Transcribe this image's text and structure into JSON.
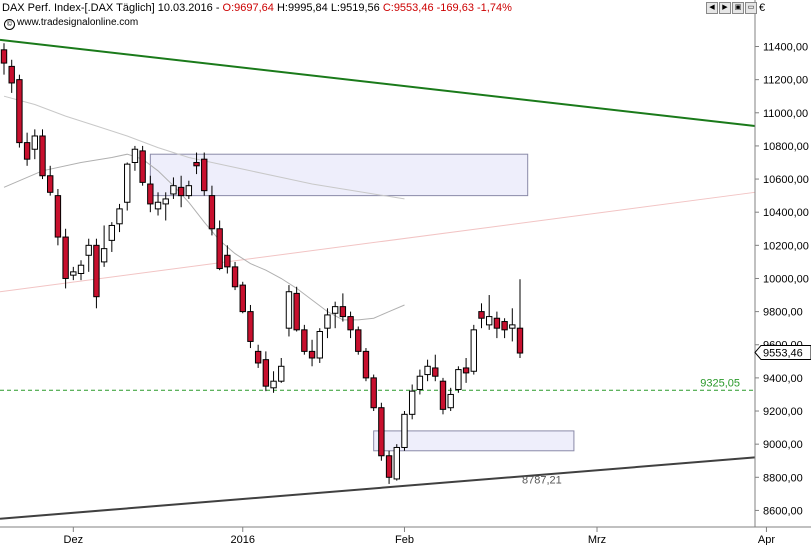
{
  "header": {
    "symbol": "DAX Perf. Index-[.DAX Täglich]",
    "date": "10.03.2016",
    "open": "O:9697,64",
    "high": "H:9995,84",
    "low": "L:9519,56",
    "close": "C:9553,46 -169,63 -1,74%",
    "source": "www.tradesignalonline.com",
    "copyright_symbol": "©",
    "currency": "€"
  },
  "toolbar": {
    "buttons": [
      "◀",
      "▶",
      "▣",
      "▭"
    ]
  },
  "colors": {
    "up_candle_fill": "#ffffff",
    "down_candle_fill": "#c8102e",
    "candle_outline": "#000000",
    "trendline_top": "#1a7a1a",
    "trendline_bottom": "#404040",
    "trendline_pink": "#f2c4c4",
    "moving_average": "#b0b0b0",
    "support_dash": "#2a9a2a",
    "zone_fill": "#eeeefb",
    "zone_border": "#8a8aa8"
  },
  "chart_data": {
    "type": "candlestick",
    "y_axis": {
      "range": [
        8500,
        11560
      ],
      "tick_labels": [
        "8600,00",
        "8800,00",
        "9000,00",
        "9200,00",
        "9400,00",
        "9600,00",
        "9800,00",
        "10000,00",
        "10200,00",
        "10400,00",
        "10600,00",
        "10800,00",
        "11000,00",
        "11200,00",
        "11400,00"
      ]
    },
    "x_axis": {
      "tick_labels": [
        "Dez",
        "2016",
        "Feb",
        "Mrz",
        "Apr"
      ]
    },
    "last_price_label": "9553,46",
    "annotations": {
      "support_level": "9325,05",
      "low_label": "8787,21"
    },
    "candles": [
      [
        11380,
        11420,
        11230,
        11300
      ],
      [
        11280,
        11320,
        11120,
        11180
      ],
      [
        11200,
        11230,
        10790,
        10820
      ],
      [
        10820,
        10880,
        10680,
        10720
      ],
      [
        10780,
        10900,
        10720,
        10860
      ],
      [
        10860,
        10900,
        10600,
        10620
      ],
      [
        10620,
        10680,
        10500,
        10520
      ],
      [
        10500,
        10540,
        10200,
        10250
      ],
      [
        10250,
        10300,
        9940,
        10000
      ],
      [
        10020,
        10070,
        9990,
        10040
      ],
      [
        10030,
        10110,
        9990,
        10080
      ],
      [
        10140,
        10240,
        10040,
        10200
      ],
      [
        10200,
        10240,
        9820,
        9890
      ],
      [
        10100,
        10320,
        10070,
        10180
      ],
      [
        10230,
        10340,
        10160,
        10320
      ],
      [
        10330,
        10450,
        10280,
        10420
      ],
      [
        10460,
        10700,
        10410,
        10690
      ],
      [
        10700,
        10800,
        10650,
        10780
      ],
      [
        10770,
        10800,
        10560,
        10580
      ],
      [
        10570,
        10620,
        10400,
        10450
      ],
      [
        10420,
        10520,
        10380,
        10460
      ],
      [
        10450,
        10520,
        10350,
        10480
      ],
      [
        10510,
        10610,
        10480,
        10560
      ],
      [
        10550,
        10620,
        10430,
        10500
      ],
      [
        10500,
        10590,
        10480,
        10560
      ],
      [
        10700,
        10760,
        10630,
        10680
      ],
      [
        10720,
        10760,
        10500,
        10530
      ],
      [
        10500,
        10560,
        10260,
        10300
      ],
      [
        10300,
        10350,
        10050,
        10060
      ],
      [
        10140,
        10200,
        10030,
        10070
      ],
      [
        10070,
        10100,
        9930,
        9950
      ],
      [
        9960,
        9980,
        9790,
        9800
      ],
      [
        9800,
        9840,
        9580,
        9620
      ],
      [
        9560,
        9600,
        9460,
        9490
      ],
      [
        9510,
        9560,
        9320,
        9350
      ],
      [
        9340,
        9440,
        9310,
        9380
      ],
      [
        9380,
        9520,
        9370,
        9470
      ],
      [
        9700,
        9960,
        9650,
        9920
      ],
      [
        9910,
        9950,
        9680,
        9690
      ],
      [
        9690,
        9720,
        9540,
        9560
      ],
      [
        9560,
        9630,
        9470,
        9520
      ],
      [
        9520,
        9700,
        9490,
        9680
      ],
      [
        9700,
        9820,
        9640,
        9780
      ],
      [
        9790,
        9860,
        9700,
        9830
      ],
      [
        9830,
        9910,
        9740,
        9770
      ],
      [
        9770,
        9800,
        9640,
        9690
      ],
      [
        9690,
        9710,
        9540,
        9560
      ],
      [
        9560,
        9580,
        9380,
        9400
      ],
      [
        9400,
        9420,
        9200,
        9220
      ],
      [
        9220,
        9250,
        8900,
        8930
      ],
      [
        8930,
        8960,
        8760,
        8800
      ],
      [
        8790,
        9000,
        8780,
        8980
      ],
      [
        8980,
        9200,
        8960,
        9180
      ],
      [
        9180,
        9360,
        9150,
        9320
      ],
      [
        9330,
        9450,
        9300,
        9410
      ],
      [
        9420,
        9510,
        9380,
        9470
      ],
      [
        9460,
        9540,
        9380,
        9410
      ],
      [
        9380,
        9400,
        9180,
        9210
      ],
      [
        9220,
        9340,
        9200,
        9300
      ],
      [
        9330,
        9470,
        9310,
        9450
      ],
      [
        9460,
        9520,
        9370,
        9430
      ],
      [
        9440,
        9720,
        9420,
        9690
      ],
      [
        9800,
        9850,
        9700,
        9760
      ],
      [
        9720,
        9900,
        9690,
        9770
      ],
      [
        9760,
        9800,
        9640,
        9700
      ],
      [
        9740,
        9760,
        9640,
        9690
      ],
      [
        9700,
        9820,
        9620,
        9720
      ],
      [
        9700,
        9995,
        9520,
        9550
      ]
    ],
    "moving_average": [
      [
        0,
        10550
      ],
      [
        5,
        10650
      ],
      [
        10,
        10700
      ],
      [
        14,
        10730
      ],
      [
        16,
        10750
      ],
      [
        18,
        10720
      ],
      [
        20,
        10650
      ],
      [
        22,
        10560
      ],
      [
        24,
        10460
      ],
      [
        26,
        10340
      ],
      [
        28,
        10230
      ],
      [
        30,
        10150
      ],
      [
        32,
        10090
      ],
      [
        34,
        10050
      ],
      [
        36,
        10000
      ],
      [
        38,
        9940
      ],
      [
        40,
        9870
      ],
      [
        42,
        9800
      ],
      [
        44,
        9750
      ],
      [
        46,
        9750
      ],
      [
        48,
        9760
      ],
      [
        50,
        9800
      ],
      [
        52,
        9840
      ]
    ],
    "ma_upper": [
      [
        0,
        11100
      ],
      [
        4,
        11050
      ],
      [
        8,
        10980
      ],
      [
        12,
        10920
      ],
      [
        16,
        10860
      ],
      [
        20,
        10790
      ],
      [
        24,
        10730
      ],
      [
        28,
        10690
      ],
      [
        32,
        10650
      ],
      [
        36,
        10610
      ],
      [
        40,
        10570
      ],
      [
        44,
        10540
      ],
      [
        48,
        10510
      ],
      [
        52,
        10480
      ]
    ],
    "trendlines": [
      {
        "from": [
          0,
          11440
        ],
        "to": [
          75,
          10920
        ]
      },
      {
        "from": [
          0,
          9920
        ],
        "to": [
          75,
          10520
        ]
      },
      {
        "from": [
          0,
          8550
        ],
        "to": [
          75,
          8920
        ]
      }
    ],
    "zones": [
      {
        "x0": 19,
        "x1": 68,
        "y0": 10500,
        "y1": 10750
      },
      {
        "x0": 48,
        "x1": 74,
        "y0": 8960,
        "y1": 9080
      }
    ]
  }
}
